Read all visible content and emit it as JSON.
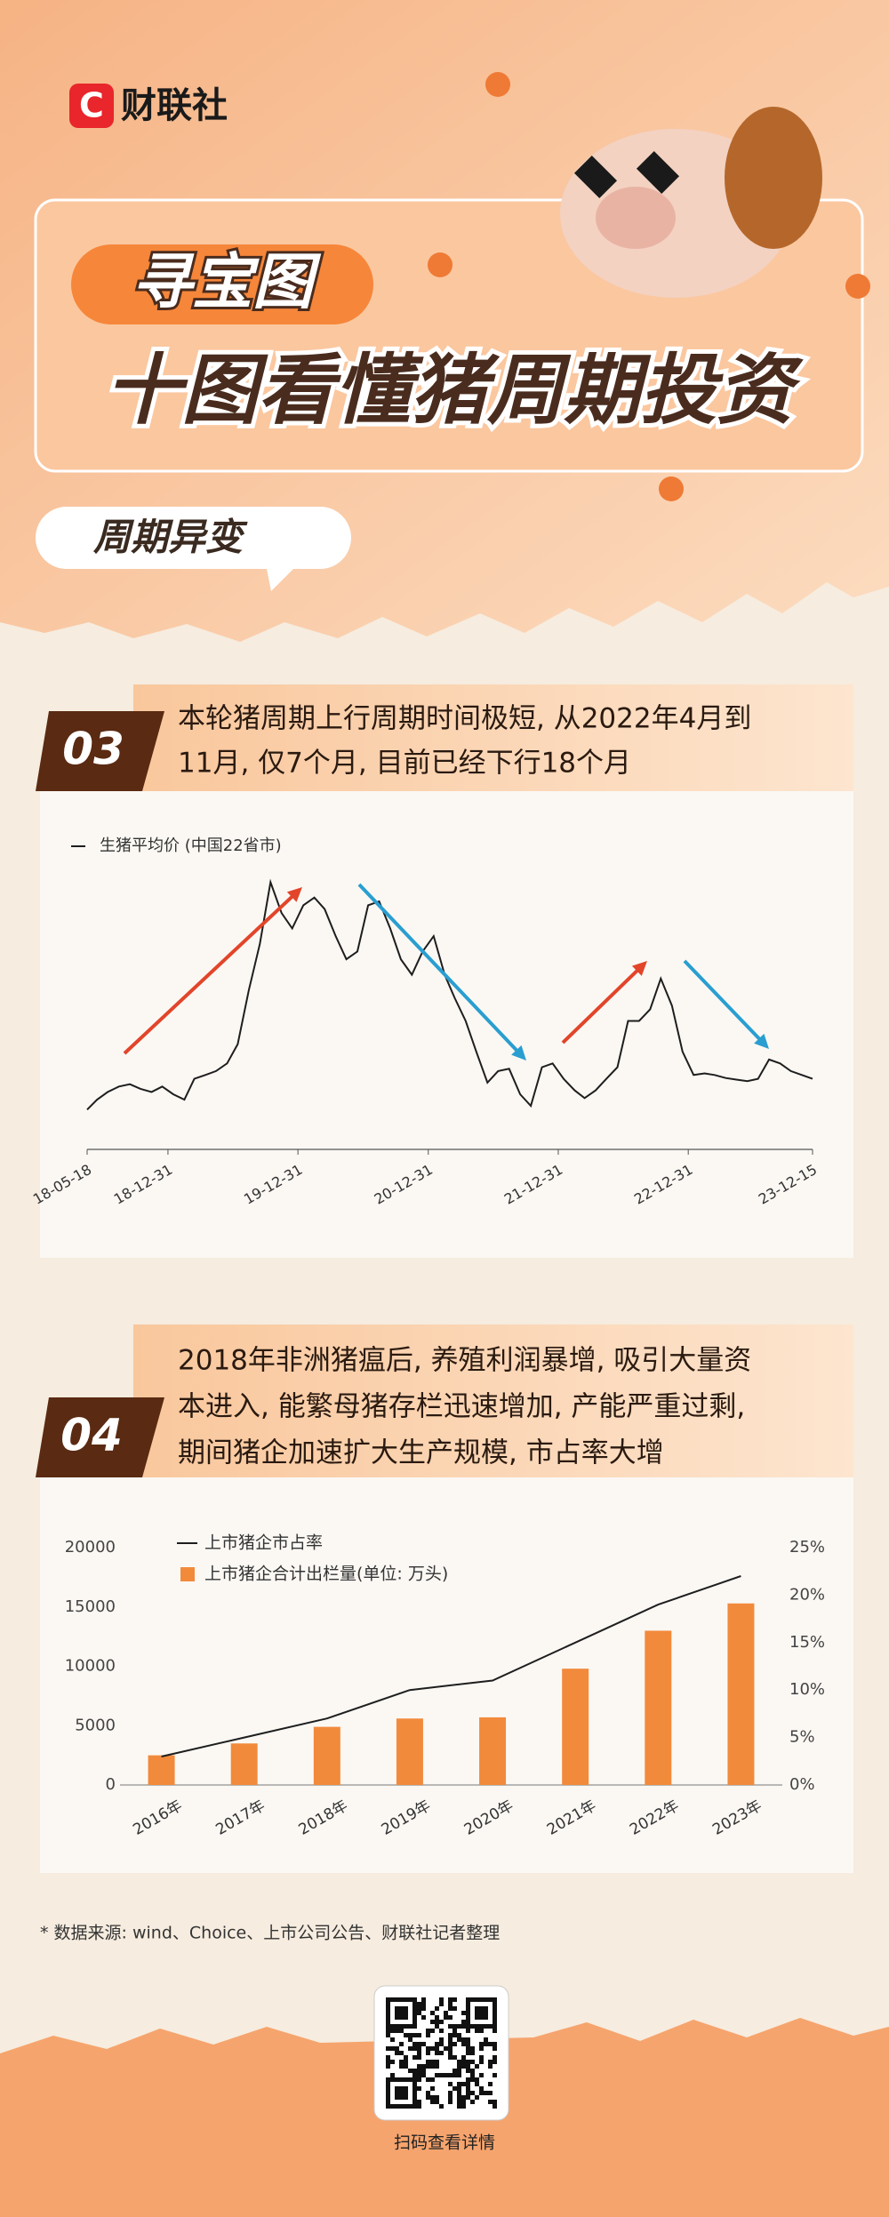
{
  "header": {
    "logo_letter": "C",
    "brand": "财联社",
    "tag": "寻宝图",
    "title": "十图看懂猪周期投资",
    "section": "周期异变"
  },
  "sections": [
    {
      "number": "03",
      "lines": [
        "本轮猪周期上行周期时间极短, 从2022年4月到",
        "11月, 仅7个月, 目前已经下行18个月"
      ]
    },
    {
      "number": "04",
      "lines": [
        "2018年非洲猪瘟后, 养殖利润暴增, 吸引大量资",
        "本进入, 能繁母猪存栏迅速增加, 产能严重过剩,",
        "期间猪企加速扩大生产规模, 市占率大增"
      ]
    }
  ],
  "chart_data": [
    {
      "type": "line",
      "x": [
        "18-05-18",
        "18-06-15",
        "18-07-15",
        "18-08-15",
        "18-09-15",
        "18-10-15",
        "18-11-15",
        "18-12-15",
        "19-01-15",
        "19-02-15",
        "19-03-15",
        "19-04-15",
        "19-05-15",
        "19-06-15",
        "19-07-15",
        "19-08-15",
        "19-09-15",
        "19-10-15",
        "19-11-15",
        "19-12-15",
        "20-01-15",
        "20-02-15",
        "20-03-15",
        "20-04-15",
        "20-05-15",
        "20-06-15",
        "20-07-15",
        "20-08-15",
        "20-09-15",
        "20-10-15",
        "20-11-15",
        "20-12-15",
        "21-01-15",
        "21-02-15",
        "21-03-15",
        "21-04-15",
        "21-05-15",
        "21-06-15",
        "21-07-15",
        "21-08-15",
        "21-09-15",
        "21-10-15",
        "21-11-15",
        "21-12-15",
        "22-01-15",
        "22-02-15",
        "22-03-15",
        "22-04-15",
        "22-05-15",
        "22-06-15",
        "22-07-15",
        "22-08-15",
        "22-09-15",
        "22-10-15",
        "22-11-15",
        "22-12-15",
        "23-01-15",
        "23-02-15",
        "23-03-15",
        "23-04-15",
        "23-05-15",
        "23-06-15",
        "23-07-15",
        "23-08-15",
        "23-09-15",
        "23-10-15",
        "23-11-15",
        "23-12-15"
      ],
      "series": [
        {
          "name": "生猪平均价 (中国22省市)",
          "color": "#1e1e1e",
          "values": [
            10.5,
            11.8,
            12.8,
            13.5,
            13.8,
            13.2,
            12.8,
            13.5,
            12.5,
            11.8,
            14.5,
            15,
            15.5,
            16.5,
            19,
            26,
            32,
            40,
            36,
            34,
            37,
            38,
            36.5,
            33,
            30,
            31,
            37,
            37.5,
            34,
            30,
            28,
            31,
            33,
            28,
            25,
            22,
            18,
            14,
            15.5,
            15.8,
            12.5,
            11,
            16,
            16.5,
            14.5,
            13,
            12,
            13,
            14.5,
            16,
            22,
            22,
            23.5,
            27.5,
            24,
            18,
            15,
            15.2,
            15,
            14.6,
            14.4,
            14.2,
            14.5,
            17,
            16.5,
            15.5,
            15,
            14.5
          ]
        }
      ],
      "xticks": [
        "18-05-18",
        "18-12-31",
        "19-12-31",
        "20-12-31",
        "21-12-31",
        "22-12-31",
        "23-12-15"
      ],
      "ylim": [
        8,
        42
      ]
    },
    {
      "type": "combo",
      "categories": [
        "2016年",
        "2017年",
        "2018年",
        "2019年",
        "2020年",
        "2021年",
        "2022年",
        "2023年"
      ],
      "series": [
        {
          "name": "上市猪企市占率",
          "type": "line",
          "axis": "y2",
          "color": "#1e1e1e",
          "values": [
            3,
            5,
            7,
            10,
            11,
            15,
            19,
            22
          ]
        },
        {
          "name": "上市猪企合计出栏量(单位: 万头)",
          "type": "bar",
          "color": "#f28a3c",
          "values": [
            2500,
            3500,
            4900,
            5600,
            5700,
            9800,
            13000,
            15300
          ]
        }
      ],
      "ylim": [
        0,
        20000
      ],
      "yticks": [
        0,
        5000,
        10000,
        15000,
        20000
      ],
      "y2lim": [
        0,
        25
      ],
      "y2ticks": [
        {
          "value": 0,
          "label": "0%"
        },
        {
          "value": 5,
          "label": "5%"
        },
        {
          "value": 10,
          "label": "10%"
        },
        {
          "value": 15,
          "label": "15%"
        },
        {
          "value": 20,
          "label": "20%"
        },
        {
          "value": 25,
          "label": "25%"
        }
      ]
    }
  ],
  "footer": {
    "source": "* 数据来源: wind、Choice、上市公司公告、财联社记者整理",
    "qr_caption": "扫码查看详情"
  }
}
